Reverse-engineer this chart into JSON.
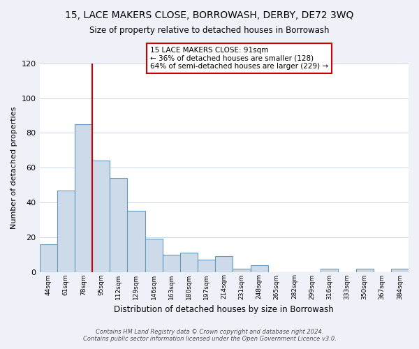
{
  "title": "15, LACE MAKERS CLOSE, BORROWASH, DERBY, DE72 3WQ",
  "subtitle": "Size of property relative to detached houses in Borrowash",
  "xlabel": "Distribution of detached houses by size in Borrowash",
  "ylabel": "Number of detached properties",
  "bar_color": "#ccdaea",
  "bar_edge_color": "#6699bb",
  "categories": [
    "44sqm",
    "61sqm",
    "78sqm",
    "95sqm",
    "112sqm",
    "129sqm",
    "146sqm",
    "163sqm",
    "180sqm",
    "197sqm",
    "214sqm",
    "231sqm",
    "248sqm",
    "265sqm",
    "282sqm",
    "299sqm",
    "316sqm",
    "333sqm",
    "350sqm",
    "367sqm",
    "384sqm"
  ],
  "values": [
    16,
    47,
    85,
    64,
    54,
    35,
    19,
    10,
    11,
    7,
    9,
    2,
    4,
    0,
    0,
    0,
    2,
    0,
    2,
    0,
    2
  ],
  "vline_x": 3,
  "vline_color": "#cc0000",
  "annotation_line1": "15 LACE MAKERS CLOSE: 91sqm",
  "annotation_line2": "← 36% of detached houses are smaller (128)",
  "annotation_line3": "64% of semi-detached houses are larger (229) →",
  "ylim": [
    0,
    120
  ],
  "yticks": [
    0,
    20,
    40,
    60,
    80,
    100,
    120
  ],
  "footer1": "Contains HM Land Registry data © Crown copyright and database right 2024.",
  "footer2": "Contains public sector information licensed under the Open Government Licence v3.0.",
  "background_color": "#eef2f8",
  "plot_background": "#ffffff",
  "grid_color": "#ccd8e8"
}
